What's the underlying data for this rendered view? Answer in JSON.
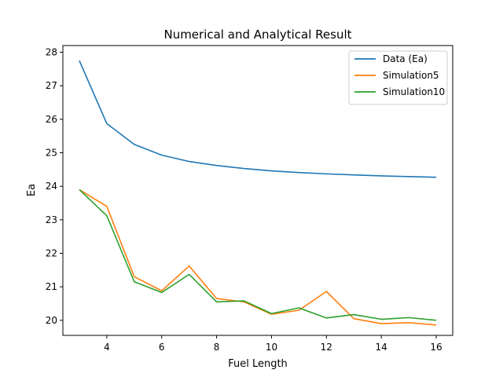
{
  "chart_data": {
    "type": "line",
    "title": "Numerical and Analytical Result",
    "xlabel": "Fuel Length",
    "ylabel": "Ea",
    "xlim": [
      2.4,
      16.6
    ],
    "ylim": [
      19.55,
      28.2
    ],
    "xticks": [
      4,
      6,
      8,
      10,
      12,
      14,
      16
    ],
    "yticks": [
      20,
      21,
      22,
      23,
      24,
      25,
      26,
      27,
      28
    ],
    "grid": false,
    "legend_position": "top-right",
    "x": [
      3,
      4,
      5,
      6,
      7,
      8,
      9,
      10,
      11,
      12,
      13,
      14,
      15,
      16
    ],
    "series": [
      {
        "name": "Data (Ea)",
        "color": "#1f77b4",
        "values": [
          27.75,
          25.87,
          25.25,
          24.93,
          24.74,
          24.62,
          24.53,
          24.46,
          24.41,
          24.37,
          24.34,
          24.31,
          24.29,
          24.27
        ]
      },
      {
        "name": "Simulation5",
        "color": "#ff7f0e",
        "values": [
          23.9,
          23.4,
          21.3,
          20.88,
          21.62,
          20.65,
          20.55,
          20.18,
          20.3,
          20.86,
          20.05,
          19.9,
          19.93,
          19.86
        ]
      },
      {
        "name": "Simulation10",
        "color": "#2ca02c",
        "values": [
          23.9,
          23.12,
          21.15,
          20.83,
          21.37,
          20.55,
          20.58,
          20.2,
          20.37,
          20.07,
          20.17,
          20.03,
          20.08,
          20.0
        ]
      }
    ]
  }
}
